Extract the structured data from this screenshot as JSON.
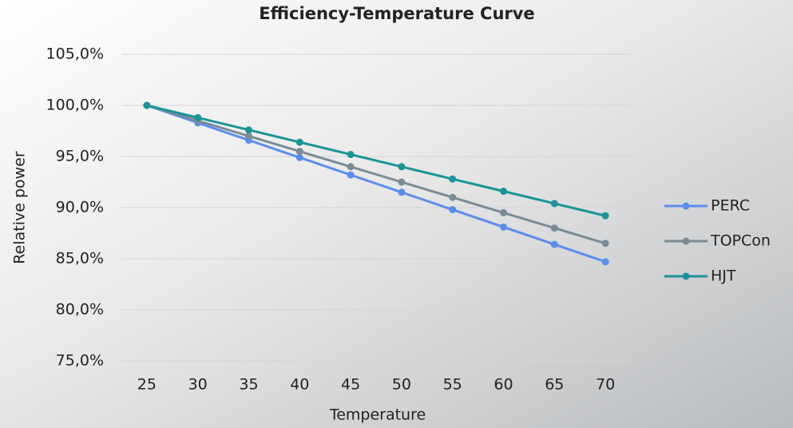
{
  "chart_data": {
    "type": "line",
    "title": "Efficiency-Temperature Curve",
    "x_label": "Temperature",
    "y_label": "Relative power",
    "categories": [
      "25",
      "30",
      "35",
      "40",
      "45",
      "50",
      "55",
      "60",
      "65",
      "70"
    ],
    "series": [
      {
        "name": "PERC",
        "color": "#5b8def",
        "values": [
          100,
          98.3,
          96.6,
          94.9,
          93.2,
          91.5,
          89.8,
          88.1,
          86.4,
          84.7
        ]
      },
      {
        "name": "TOPCon",
        "color": "#7a8c95",
        "values": [
          100,
          98.5,
          97,
          95.5,
          94,
          92.5,
          91,
          89.5,
          88,
          86.5
        ]
      },
      {
        "name": "HJT",
        "color": "#1a9499",
        "values": [
          100,
          98.8,
          97.6,
          96.4,
          95.2,
          94,
          92.8,
          91.6,
          90.4,
          89.2
        ]
      }
    ],
    "ylim": [
      75,
      105
    ],
    "yticks": [
      {
        "value": 75,
        "label": "75,0%"
      },
      {
        "value": 80,
        "label": "80,0%"
      },
      {
        "value": 85,
        "label": "85,0%"
      },
      {
        "value": 90,
        "label": "90,0%"
      },
      {
        "value": 95,
        "label": "95,0%"
      },
      {
        "value": 100,
        "label": "100,0%"
      },
      {
        "value": 105,
        "label": "105,0%"
      }
    ],
    "grid": true,
    "legend": "right"
  }
}
